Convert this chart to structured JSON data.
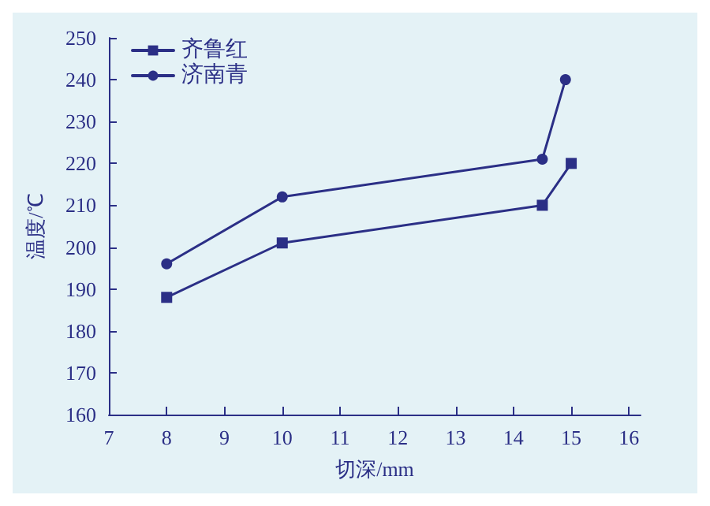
{
  "chart_data": {
    "type": "line",
    "xlabel": "切深/mm",
    "ylabel": "温度/℃",
    "xlim": [
      7,
      16.2
    ],
    "xticks": [
      7,
      8,
      9,
      10,
      11,
      12,
      13,
      14,
      15,
      16
    ],
    "ylim": [
      160,
      250
    ],
    "yticks": [
      160,
      170,
      180,
      190,
      200,
      210,
      220,
      230,
      240,
      250
    ],
    "grid": false,
    "legend": "top left",
    "series": [
      {
        "name": "齐鲁红",
        "color": "#2b2f86",
        "marker": "square",
        "x": [
          8,
          10,
          14.5,
          15
        ],
        "values": [
          188,
          201,
          210,
          220
        ]
      },
      {
        "name": "济南青",
        "color": "#2b2f86",
        "marker": "circle",
        "x": [
          8,
          10,
          14.5,
          14.9
        ],
        "values": [
          196,
          212,
          221,
          240
        ]
      }
    ]
  }
}
